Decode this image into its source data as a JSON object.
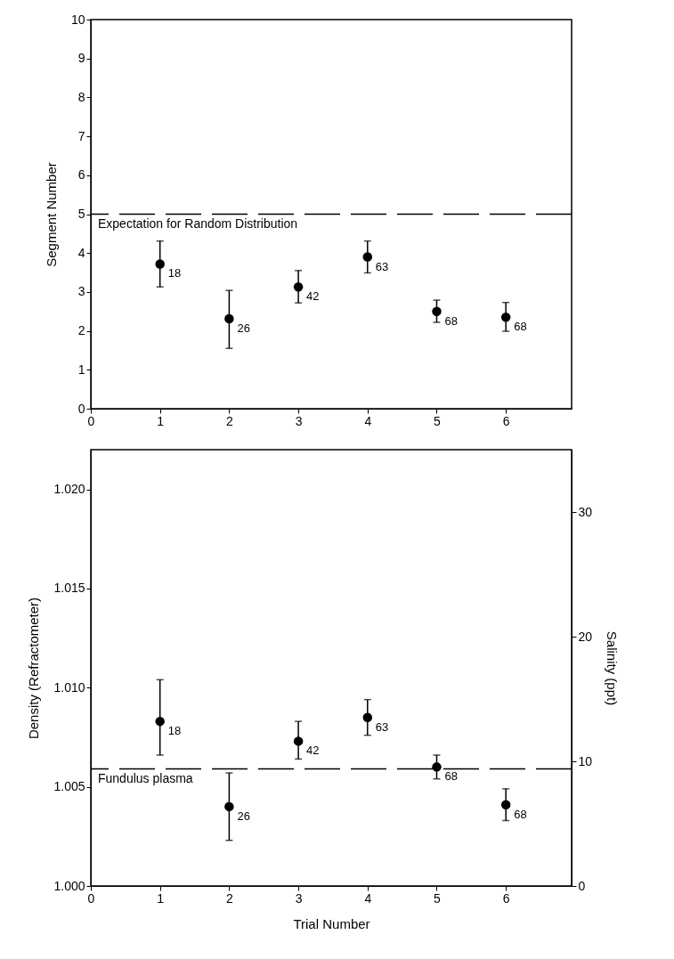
{
  "chart_data": [
    {
      "type": "scatter",
      "ylabel": "Segment Number",
      "x": [
        1,
        2,
        3,
        4,
        5,
        6
      ],
      "series": [
        {
          "color": "#000000",
          "values": [
            3.72,
            2.31,
            3.13,
            3.9,
            2.5,
            2.35
          ],
          "errors": [
            [
              3.13,
              4.31
            ],
            [
              1.55,
              3.04
            ],
            [
              2.72,
              3.55
            ],
            [
              3.49,
              4.31
            ],
            [
              2.22,
              2.79
            ],
            [
              1.99,
              2.73
            ]
          ]
        }
      ],
      "annotations": [
        {
          "text": "18",
          "x": 1,
          "y": 3.72
        },
        {
          "text": "26",
          "x": 2,
          "y": 2.31
        },
        {
          "text": "42",
          "x": 3,
          "y": 3.13
        },
        {
          "text": "63",
          "x": 4,
          "y": 3.9
        },
        {
          "text": "68",
          "x": 5,
          "y": 2.5
        },
        {
          "text": "68",
          "x": 6,
          "y": 2.35
        }
      ],
      "xlim": [
        0,
        6.95
      ],
      "xticks": [
        0,
        1,
        2,
        3,
        4,
        5,
        6
      ],
      "ylim": [
        0,
        10
      ],
      "yticks": [
        0,
        1,
        2,
        3,
        4,
        5,
        6,
        7,
        8,
        9,
        10
      ],
      "marker": "circle",
      "ref_lines": [
        {
          "axis": "y",
          "value": 5,
          "label": "Expectation for Random Distribution",
          "line_style": "dashed",
          "color": "#000000"
        }
      ]
    },
    {
      "type": "scatter",
      "xlabel": "Trial Number",
      "ylabel": "Density (Refractometer)",
      "y2label": "Salinity (ppt)",
      "x": [
        1,
        2,
        3,
        4,
        5,
        6
      ],
      "series": [
        {
          "color": "#000000",
          "values": [
            1.0083,
            1.004,
            1.0073,
            1.0085,
            1.006,
            1.0041
          ],
          "errors": [
            [
              1.0066,
              1.0104
            ],
            [
              1.0023,
              1.0057
            ],
            [
              1.0064,
              1.0083
            ],
            [
              1.0076,
              1.0094
            ],
            [
              1.0054,
              1.0066
            ],
            [
              1.0033,
              1.0049
            ]
          ]
        }
      ],
      "annotations": [
        {
          "text": "18",
          "x": 1,
          "y": 1.0083
        },
        {
          "text": "26",
          "x": 2,
          "y": 1.004
        },
        {
          "text": "42",
          "x": 3,
          "y": 1.0073
        },
        {
          "text": "63",
          "x": 4,
          "y": 1.0085
        },
        {
          "text": "68",
          "x": 5,
          "y": 1.006
        },
        {
          "text": "68",
          "x": 6,
          "y": 1.0041
        }
      ],
      "xlim": [
        0,
        6.95
      ],
      "xticks": [
        0,
        1,
        2,
        3,
        4,
        5,
        6
      ],
      "ylim": [
        1.0,
        1.022
      ],
      "yticks": [
        {
          "value": 1.0,
          "label": "1.000"
        },
        {
          "value": 1.005,
          "label": "1.005"
        },
        {
          "value": 1.01,
          "label": "1.010"
        },
        {
          "value": 1.015,
          "label": "1.015"
        },
        {
          "value": 1.02,
          "label": "1.020"
        }
      ],
      "y2lim": [
        0,
        35
      ],
      "y2ticks": [
        0,
        10,
        20,
        30
      ],
      "marker": "circle",
      "ref_lines": [
        {
          "axis": "y",
          "value": 1.0059,
          "label": "Fundulus plasma",
          "line_style": "dashed",
          "color": "#000000"
        }
      ]
    }
  ]
}
